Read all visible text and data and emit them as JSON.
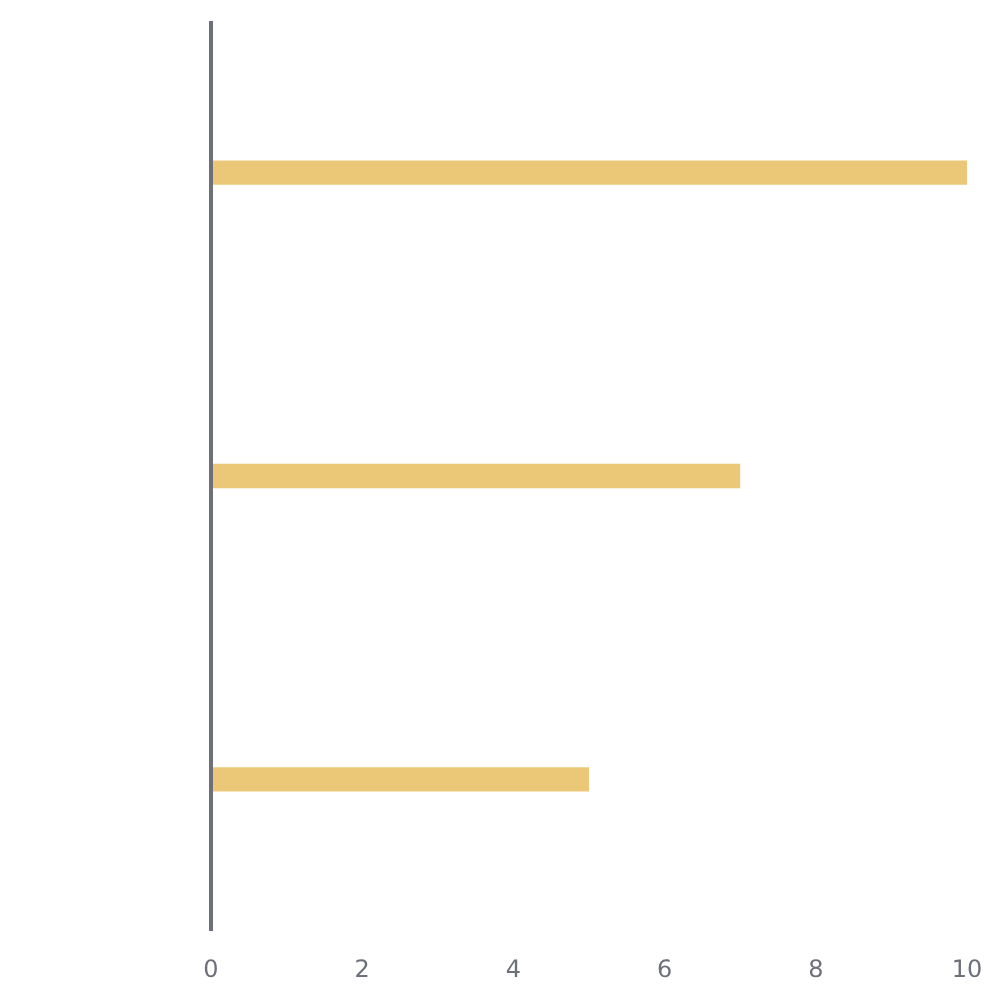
{
  "chart_data": {
    "type": "bar",
    "orientation": "horizontal",
    "categories": [
      null,
      null,
      null
    ],
    "values": [
      10,
      7,
      5
    ],
    "color": "#ebc877",
    "xlim": [
      0,
      10
    ],
    "xticks": [
      0,
      2,
      4,
      6,
      8,
      10
    ],
    "grid": false,
    "tick_labels": "x"
  }
}
